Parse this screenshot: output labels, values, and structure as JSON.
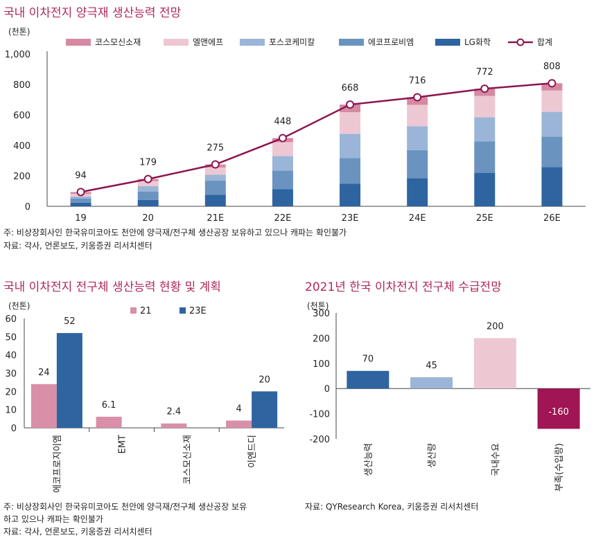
{
  "chart1": {
    "title": "국내 이차전지 양극재 생산능력 전망",
    "unit": "(천톤)",
    "note": "주: 비상장회사인 한국유미코아도 천안에 양극재/전구체 생산공장 보유하고 있으나 캐파는 확인불가",
    "source": "자료: 각사, 언론보도, 키움증권 리서치센터"
  },
  "chart2": {
    "title": "국내 이차전지 전구체 생산능력 현황 및 계획",
    "unit": "(천톤)",
    "note_line1": "주: 비상장회사인 한국유미코아도 천안에 양극재/전구체 생산공장 보유",
    "note_line2": "하고 있으나 캐파는 확인불가",
    "source": "자료: 각사, 언론보도, 키움증권 리서치센터"
  },
  "chart3": {
    "title": "2021년 한국 이차전지 전구체 수급전망",
    "unit": "(천톤)",
    "source": "자료: QYResearch Korea, 키움증권 리서치센터"
  },
  "chart_data": [
    {
      "type": "bar",
      "stacked": true,
      "title": "국내 이차전지 양극재 생산능력 전망",
      "ylabel": "(천톤)",
      "ylim": [
        0,
        1000
      ],
      "yticks": [
        0,
        200,
        400,
        600,
        800,
        "1,000"
      ],
      "categories": [
        "19",
        "20",
        "21E",
        "22E",
        "23E",
        "24E",
        "25E",
        "26E"
      ],
      "series": [
        {
          "name": "LG화학",
          "color": "#2e64a0",
          "values": [
            24,
            42,
            76,
            113,
            148,
            185,
            220,
            258
          ]
        },
        {
          "name": "에코프로비엠",
          "color": "#6a93c0",
          "values": [
            26,
            55,
            92,
            122,
            168,
            183,
            205,
            200
          ]
        },
        {
          "name": "포스코케미칼",
          "color": "#9ab5d8",
          "values": [
            14,
            35,
            40,
            95,
            160,
            158,
            160,
            162
          ]
        },
        {
          "name": "엘앤에프",
          "color": "#edc8d3",
          "values": [
            18,
            34,
            47,
            91,
            142,
            140,
            140,
            140
          ]
        },
        {
          "name": "코스모신소재",
          "color": "#d68aa2",
          "values": [
            12,
            13,
            20,
            27,
            50,
            50,
            47,
            48
          ]
        }
      ],
      "line": {
        "name": "합계",
        "color": "#8b1550",
        "values": [
          94,
          179,
          275,
          448,
          668,
          716,
          772,
          808
        ],
        "labels": [
          "94",
          "179",
          "275",
          "448",
          "668",
          "716",
          "772",
          "808"
        ]
      },
      "legend": "top"
    },
    {
      "type": "bar",
      "title": "국내 이차전지 전구체 생산능력 현황 및 계획",
      "ylabel": "(천톤)",
      "ylim": [
        0,
        60
      ],
      "yticks": [
        0,
        10,
        20,
        30,
        40,
        50,
        60
      ],
      "categories": [
        "에코프로지이엠",
        "EMT",
        "코스모신소재",
        "이엔드디"
      ],
      "series": [
        {
          "name": "21",
          "color": "#d98fa8",
          "values": [
            24,
            6.1,
            2.4,
            4
          ],
          "labels": [
            "24",
            "6.1",
            "2.4",
            "4"
          ]
        },
        {
          "name": "23E",
          "color": "#2e64a0",
          "values": [
            52,
            null,
            null,
            20
          ],
          "labels": [
            "52",
            "",
            "",
            "20"
          ]
        }
      ],
      "legend": "top"
    },
    {
      "type": "bar",
      "title": "2021년 한국 이차전지 전구체 수급전망",
      "ylabel": "(천톤)",
      "ylim": [
        -200,
        300
      ],
      "yticks": [
        -200,
        -100,
        0,
        100,
        200,
        300
      ],
      "categories": [
        "생산능력",
        "생산량",
        "국내수요",
        "부족(수입량)"
      ],
      "values": [
        70,
        45,
        200,
        -160
      ],
      "labels": [
        "70",
        "45",
        "200",
        "-160"
      ],
      "colors": [
        "#2e64a0",
        "#9ab5d8",
        "#edc8d3",
        "#a01553"
      ]
    }
  ]
}
